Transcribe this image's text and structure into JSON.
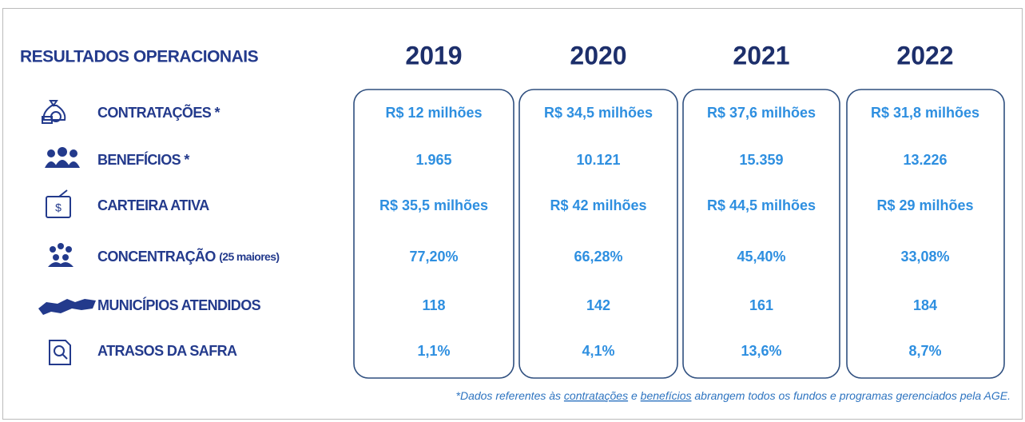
{
  "title": "RESULTADOS OPERACIONAIS",
  "years": [
    "2019",
    "2020",
    "2021",
    "2022"
  ],
  "rows": [
    {
      "label": "CONTRATAÇÕES *",
      "values": [
        "R$ 12 milhões",
        "R$ 34,5 milhões",
        "R$ 37,6 milhões",
        "R$ 31,8 milhões"
      ]
    },
    {
      "label": "BENEFÍCIOS *",
      "values": [
        "1.965",
        "10.121",
        "15.359",
        "13.226"
      ]
    },
    {
      "label": "CARTEIRA ATIVA",
      "values": [
        "R$ 35,5 milhões",
        "R$ 42 milhões",
        "R$ 44,5 milhões",
        "R$ 29 milhões"
      ]
    },
    {
      "label": "CONCENTRAÇÃO",
      "label_note": "(25 maiores)",
      "values": [
        "77,20%",
        "66,28%",
        "45,40%",
        "33,08%"
      ]
    },
    {
      "label": "MUNICÍPIOS ATENDIDOS",
      "values": [
        "118",
        "142",
        "161",
        "184"
      ]
    },
    {
      "label": "ATRASOS DA SAFRA",
      "values": [
        "1,1%",
        "4,1%",
        "13,6%",
        "8,7%"
      ]
    }
  ],
  "footnote": {
    "parts": [
      "*Dados referentes às ",
      "contratações",
      " e ",
      "benefícios",
      " abrangem todos os fundos e programas gerenciados pela AGE."
    ]
  }
}
